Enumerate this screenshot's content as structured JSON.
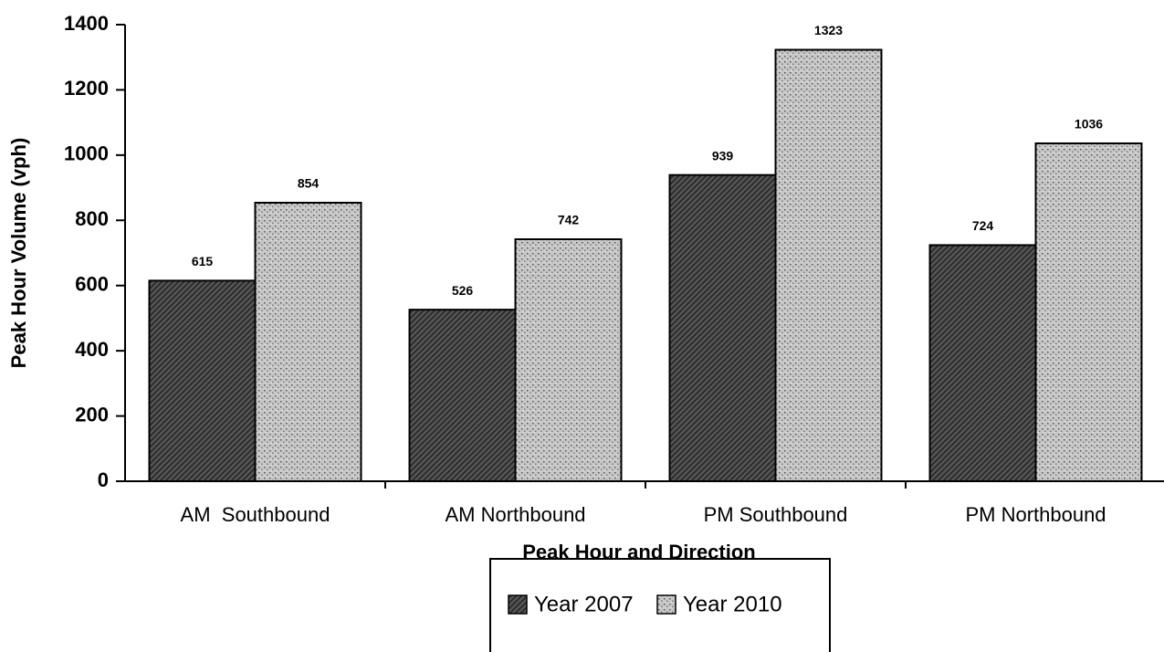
{
  "chart_data": {
    "type": "bar",
    "x_label": "Peak Hour and Direction",
    "y_label": "Peak Hour Volume (vph)",
    "categories": [
      "AM  Southbound",
      "AM Northbound",
      "PM Southbound",
      "PM Northbound"
    ],
    "series": [
      {
        "name": "Year 2007",
        "color": "#555555",
        "values": [
          615,
          526,
          939,
          724
        ]
      },
      {
        "name": "Year 2010",
        "color": "#c8c8c8",
        "values": [
          854,
          742,
          1323,
          1036
        ]
      }
    ],
    "ylim": [
      0,
      1400
    ],
    "yticks": [
      0,
      200,
      400,
      600,
      800,
      1000,
      1200,
      1400
    ],
    "legend": "bottom"
  }
}
